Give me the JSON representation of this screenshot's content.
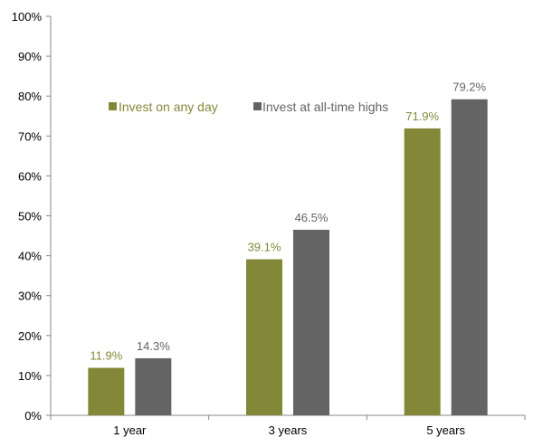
{
  "chart_data": {
    "type": "bar",
    "categories": [
      "1 year",
      "3 years",
      "5 years"
    ],
    "series": [
      {
        "name": "Invest on any day",
        "values": [
          11.9,
          39.1,
          71.9
        ],
        "labels": [
          "11.9%",
          "39.1%",
          "71.9%"
        ],
        "color": "#838839"
      },
      {
        "name": "Invest at all-time highs",
        "values": [
          14.3,
          46.5,
          79.2
        ],
        "labels": [
          "14.3%",
          "46.5%",
          "79.2%"
        ],
        "color": "#646464"
      }
    ],
    "ylim": [
      0,
      100
    ],
    "yticks": [
      0,
      10,
      20,
      30,
      40,
      50,
      60,
      70,
      80,
      90,
      100
    ],
    "ytick_labels": [
      "0%",
      "10%",
      "20%",
      "30%",
      "40%",
      "50%",
      "60%",
      "70%",
      "80%",
      "90%",
      "100%"
    ],
    "grid": false,
    "legend_position": "top-left",
    "title": "",
    "xlabel": "",
    "ylabel": ""
  }
}
